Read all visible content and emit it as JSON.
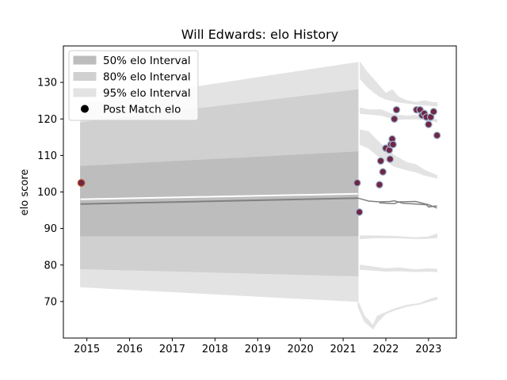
{
  "chart_data": {
    "type": "line",
    "title": "Will Edwards: elo History",
    "xlabel": "",
    "ylabel": "elo score",
    "xlim": [
      2014.45,
      2023.65
    ],
    "ylim": [
      60,
      140
    ],
    "xticks": [
      2015,
      2016,
      2017,
      2018,
      2019,
      2020,
      2021,
      2022,
      2023
    ],
    "yticks": [
      70,
      80,
      90,
      100,
      110,
      120,
      130
    ],
    "grid": false,
    "legend": {
      "placement": "top-left",
      "entries": [
        {
          "label": "50% elo Interval",
          "kind": "band",
          "color": "#bdbdbd"
        },
        {
          "label": "80% elo Interval",
          "kind": "band",
          "color": "#d0d0d0"
        },
        {
          "label": "95% elo Interval",
          "kind": "band",
          "color": "#e3e3e3"
        },
        {
          "label": "Post Match elo",
          "kind": "marker",
          "color": "#000000"
        }
      ]
    },
    "colors": {
      "band50": "#bdbdbd",
      "band80": "#d0d0d0",
      "band95": "#e3e3e3",
      "rating_line": "#ffffff",
      "expected_line": "#808080",
      "marker_fill": "#6e2846",
      "marker_edge": "#9fb4cf"
    },
    "intervals": {
      "x": [
        2014.85,
        2021.35
      ],
      "band95": {
        "lower": [
          74,
          70
        ],
        "upper": [
          124,
          135.5
        ]
      },
      "band80": {
        "lower": [
          79,
          77
        ],
        "upper": [
          119,
          128
        ]
      },
      "band50": {
        "lower": [
          88,
          88
        ],
        "upper": [
          107,
          111
        ]
      }
    },
    "rating_line": {
      "x": [
        2014.85,
        2021.35
      ],
      "y": [
        98,
        99.5
      ]
    },
    "expected_line": {
      "x": [
        2014.85,
        2021.35
      ],
      "y": [
        96.7,
        98.3
      ]
    },
    "post_match_elo": [
      {
        "x": 2014.87,
        "y": 102.5
      },
      {
        "x": 2021.33,
        "y": 102.5
      },
      {
        "x": 2021.38,
        "y": 94.5
      },
      {
        "x": 2021.85,
        "y": 102.0
      },
      {
        "x": 2021.88,
        "y": 108.5
      },
      {
        "x": 2021.93,
        "y": 105.5
      },
      {
        "x": 2022.0,
        "y": 112.0
      },
      {
        "x": 2022.08,
        "y": 111.5
      },
      {
        "x": 2022.1,
        "y": 109.0
      },
      {
        "x": 2022.12,
        "y": 113.0
      },
      {
        "x": 2022.15,
        "y": 114.5
      },
      {
        "x": 2022.17,
        "y": 113.0
      },
      {
        "x": 2022.2,
        "y": 120.0
      },
      {
        "x": 2022.25,
        "y": 122.5
      },
      {
        "x": 2022.72,
        "y": 122.5
      },
      {
        "x": 2022.8,
        "y": 122.5
      },
      {
        "x": 2022.85,
        "y": 121.0
      },
      {
        "x": 2022.9,
        "y": 121.5
      },
      {
        "x": 2022.95,
        "y": 120.5
      },
      {
        "x": 2023.0,
        "y": 118.5
      },
      {
        "x": 2023.05,
        "y": 120.5
      },
      {
        "x": 2023.12,
        "y": 122.0
      },
      {
        "x": 2023.2,
        "y": 115.5
      }
    ]
  }
}
